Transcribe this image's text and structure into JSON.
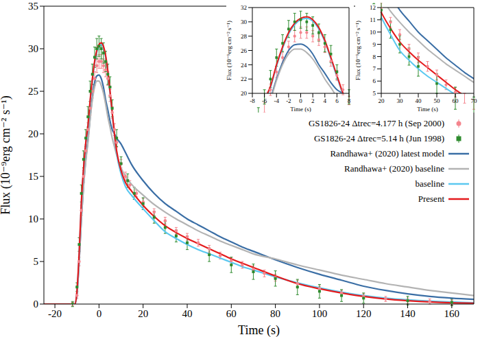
{
  "chart_data": {
    "type": "line",
    "x_label": "Time (s)",
    "y_label": "Flux (10⁻⁹erg cm⁻² s⁻¹)",
    "xlim": [
      -25,
      170
    ],
    "ylim": [
      0,
      35
    ],
    "xticks": [
      -20,
      0,
      20,
      40,
      60,
      80,
      100,
      120,
      140,
      160
    ],
    "yticks": [
      0,
      5,
      10,
      15,
      20,
      25,
      30,
      35
    ],
    "legend": "upper right",
    "series": [
      {
        "name": "GS1826-24 Δtrec=4.177 h (Sep 2000)",
        "type": "scatter",
        "marker": "circle",
        "color": "#f4858e",
        "x": [
          -12,
          -10,
          -9,
          -8,
          -7,
          -6,
          -5,
          -4,
          -3,
          -2,
          -1,
          0,
          1,
          2,
          3,
          4,
          5,
          6,
          7,
          8,
          10,
          12,
          14,
          17,
          20,
          25,
          30,
          35,
          40,
          45,
          50,
          55,
          60,
          65,
          70,
          75,
          80,
          90,
          100,
          110,
          120,
          130,
          140,
          150,
          160
        ],
        "values": [
          0,
          1,
          5,
          11,
          15,
          18,
          20.5,
          23,
          25,
          26.5,
          28,
          28.5,
          28.5,
          28,
          27.5,
          26.5,
          24.5,
          22.5,
          20.5,
          19,
          16.5,
          15,
          14,
          13,
          12,
          10.8,
          9.8,
          8.6,
          7.9,
          7.2,
          6.5,
          5.7,
          5.1,
          4.6,
          4.1,
          3.6,
          3.1,
          2.4,
          1.8,
          1.3,
          0.9,
          0.6,
          0.4,
          0.3,
          0.2
        ],
        "errors": [
          0.2,
          0.3,
          0.5,
          0.6,
          0.7,
          0.7,
          0.8,
          0.8,
          0.8,
          0.8,
          0.8,
          0.8,
          0.8,
          0.8,
          0.8,
          0.8,
          0.7,
          0.7,
          0.7,
          0.6,
          0.5,
          0.5,
          0.5,
          0.4,
          0.4,
          0.4,
          0.4,
          0.4,
          0.4,
          0.4,
          0.4,
          0.4,
          0.4,
          0.4,
          0.4,
          0.4,
          0.4,
          0.4,
          0.3,
          0.3,
          0.3,
          0.3,
          0.3,
          0.3,
          0.3
        ]
      },
      {
        "name": "GS1826-24 Δtrec=5.14 h (Jun 1998)",
        "type": "scatter",
        "marker": "square",
        "color": "#2e8b2e",
        "x": [
          -12,
          -10,
          -9,
          -8,
          -7,
          -6,
          -5,
          -4,
          -3,
          -2,
          -1,
          0,
          1,
          2,
          3,
          4,
          5,
          6,
          8,
          10,
          13,
          16,
          20,
          25,
          30,
          35,
          40,
          50,
          60,
          70,
          80,
          90,
          100,
          110,
          120,
          140,
          160
        ],
        "values": [
          0,
          2,
          7,
          13,
          17,
          19.5,
          22,
          25,
          27,
          29,
          30,
          30.3,
          30,
          29.5,
          28.5,
          27,
          25.5,
          23,
          19.5,
          16.5,
          14.5,
          13,
          11.8,
          10.2,
          9,
          8,
          7.2,
          5.8,
          4.6,
          3.8,
          3,
          2,
          1.5,
          1,
          0.7,
          0.4,
          0.2
        ],
        "errors": [
          0.3,
          0.5,
          0.8,
          1,
          1,
          1,
          1.2,
          1.2,
          1.2,
          1.2,
          1.2,
          1.2,
          1.2,
          1.2,
          1.2,
          1.2,
          1.2,
          1,
          1,
          0.8,
          0.8,
          0.7,
          0.7,
          0.7,
          0.7,
          0.7,
          0.8,
          0.8,
          0.9,
          0.9,
          0.9,
          0.9,
          0.8,
          0.7,
          0.6,
          0.5,
          0.4
        ]
      },
      {
        "name": "Randhawa+ (2020) latest model",
        "type": "line",
        "color": "#3a6ea5",
        "x": [
          -25,
          -11,
          -10,
          -9,
          -8,
          -7,
          -6,
          -5,
          -4,
          -3,
          -2,
          -1,
          0,
          1,
          2,
          3,
          4,
          5,
          6,
          7,
          8,
          10,
          12,
          15,
          20,
          25,
          30,
          35,
          40,
          45,
          50,
          55,
          60,
          65,
          70,
          80,
          90,
          100,
          110,
          120,
          130,
          140,
          150,
          160,
          170
        ],
        "values": [
          0,
          0,
          1.2,
          5,
          10,
          14,
          17,
          19.3,
          22,
          24.3,
          26,
          26.8,
          26.9,
          26.5,
          25.5,
          24,
          22.8,
          21.5,
          20.5,
          20,
          19.5,
          18.8,
          17.8,
          16.3,
          14.5,
          13,
          11.8,
          10.9,
          10,
          9.3,
          8.6,
          7.9,
          7.3,
          6.7,
          6.2,
          5.2,
          4.3,
          3.5,
          2.8,
          2.1,
          1.6,
          1.2,
          0.9,
          0.7,
          0.55
        ]
      },
      {
        "name": "Randhawa+ (2020) baseline",
        "type": "line",
        "color": "#b3b3b3",
        "x": [
          -25,
          -11,
          -10,
          -9,
          -8,
          -7,
          -6,
          -5,
          -4,
          -3,
          -2,
          -1,
          0,
          1,
          2,
          3,
          4,
          5,
          6,
          7,
          8,
          10,
          12,
          15,
          20,
          25,
          30,
          35,
          40,
          45,
          50,
          55,
          60,
          65,
          70,
          80,
          90,
          100,
          110,
          120,
          130,
          140,
          150,
          160,
          170
        ],
        "values": [
          0,
          0,
          1.2,
          5,
          10,
          13.8,
          16.8,
          19,
          21.8,
          24,
          25.5,
          26.2,
          26.2,
          25.7,
          24.8,
          23.5,
          22,
          20.8,
          19.5,
          18.5,
          17.5,
          16,
          15,
          14,
          12.8,
          11.7,
          10.8,
          10,
          9.3,
          8.6,
          8,
          7.4,
          6.9,
          6.4,
          5.9,
          5.3,
          4.6,
          4,
          3.4,
          2.9,
          2.4,
          2,
          1.6,
          1.3,
          1
        ]
      },
      {
        "name": "baseline",
        "type": "line",
        "color": "#5bc8f0",
        "x": [
          -25,
          -11,
          -10,
          -9,
          -8,
          -7,
          -6,
          -5,
          -4,
          -3,
          -2,
          -1,
          0,
          1,
          2,
          3,
          4,
          5,
          6,
          7,
          8,
          10,
          12,
          15,
          20,
          25,
          30,
          35,
          40,
          45,
          50,
          55,
          60,
          65,
          70,
          80,
          90,
          100,
          110,
          120,
          130,
          140,
          150,
          160,
          170
        ],
        "values": [
          0,
          0,
          1.4,
          5.8,
          11.8,
          15.8,
          18.8,
          20.8,
          23.8,
          26.3,
          28.3,
          29.6,
          30.3,
          30.5,
          30.1,
          29,
          27.2,
          24.8,
          22.3,
          19.8,
          17.7,
          15.3,
          13.8,
          12.7,
          11.2,
          9.8,
          8.5,
          7.7,
          7,
          6.4,
          5.9,
          5.4,
          4.9,
          4.4,
          4,
          3.2,
          2.5,
          1.9,
          1.4,
          1,
          0.7,
          0.5,
          0.35,
          0.25,
          0.15
        ]
      },
      {
        "name": "Present",
        "type": "line",
        "color": "#e41a1c",
        "x": [
          -25,
          -11,
          -10,
          -9,
          -8,
          -7,
          -6,
          -5,
          -4,
          -3,
          -2,
          -1,
          0,
          1,
          2,
          3,
          4,
          5,
          6,
          7,
          8,
          10,
          12,
          15,
          20,
          25,
          30,
          35,
          40,
          45,
          50,
          55,
          60,
          65,
          70,
          80,
          90,
          100,
          110,
          120,
          130,
          140,
          150,
          160,
          170
        ],
        "values": [
          0,
          0,
          1.5,
          6,
          12,
          16,
          19,
          21,
          24,
          26.5,
          28.5,
          29.8,
          30.5,
          30.7,
          30.3,
          29.2,
          27.4,
          25,
          22.5,
          20,
          18,
          15.7,
          14.3,
          13.2,
          11.6,
          10.3,
          9.2,
          8.4,
          7.7,
          7.1,
          6.5,
          5.9,
          5.3,
          4.8,
          4.3,
          3.3,
          2.4,
          1.8,
          1.3,
          0.9,
          0.6,
          0.4,
          0.25,
          0.15,
          0.1
        ]
      }
    ],
    "insets": [
      {
        "type": "line",
        "x_label": "Time (s)",
        "y_label": "Flux (10⁻⁹erg cm⁻² s⁻¹)",
        "xlim": [
          -8,
          8
        ],
        "ylim": [
          20,
          32
        ],
        "xticks": [
          -8,
          -6,
          -4,
          -2,
          0,
          2,
          4,
          6,
          8
        ],
        "yticks": [
          20,
          22,
          24,
          26,
          28,
          30,
          32
        ]
      },
      {
        "type": "line",
        "x_label": "Time (s)",
        "y_label": "Flux (10⁻⁹erg cm⁻² s⁻¹)",
        "xlim": [
          20,
          70
        ],
        "ylim": [
          5,
          12
        ],
        "xticks": [
          20,
          30,
          40,
          50,
          60,
          70
        ],
        "yticks": [
          5,
          6,
          7,
          8,
          9,
          10,
          11,
          12
        ]
      }
    ]
  }
}
